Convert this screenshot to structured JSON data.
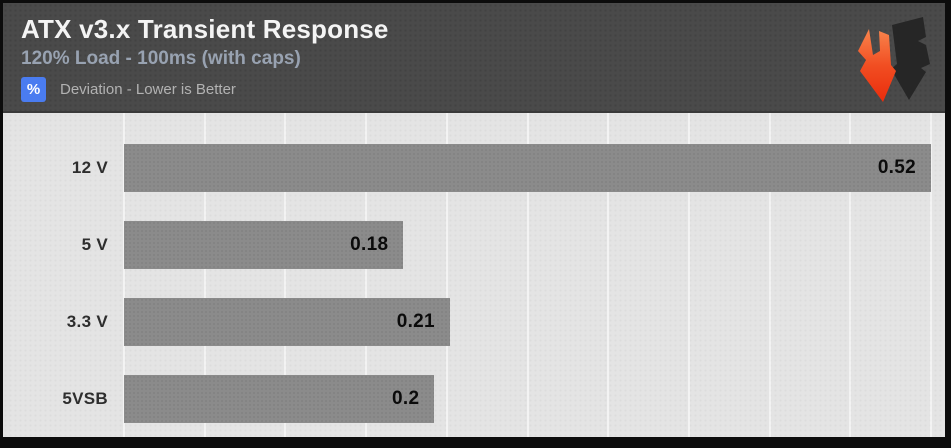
{
  "header": {
    "title": "ATX v3.x Transient Response",
    "subtitle": "120% Load - 100ms (with caps)"
  },
  "legend": {
    "symbol": "%",
    "label": "Deviation - Lower is Better"
  },
  "logo": {
    "name": "hardware-busters-hb-logo"
  },
  "colors": {
    "header_bg": "#4a4a4a",
    "plot_bg": "#e4e4e4",
    "bar": "#8b8b8b",
    "legend_badge_blue": "#4a7cf0",
    "logo_orange_top": "#f9854d",
    "logo_orange_bottom": "#ea2c0c",
    "logo_dark": "#262626",
    "frame": "#0c0c0c"
  },
  "chart_data": {
    "type": "bar",
    "orientation": "horizontal",
    "title": "ATX v3.x Transient Response",
    "subtitle": "120% Load - 100ms (with caps)",
    "unit": "%",
    "legend": "Deviation - Lower is Better",
    "categories": [
      "12 V",
      "5 V",
      "3.3 V",
      "5VSB"
    ],
    "values": [
      0.52,
      0.18,
      0.21,
      0.2
    ],
    "xlabel": "",
    "ylabel": "",
    "xlim": [
      0,
      0.52
    ],
    "grid": true,
    "gridline_count": 11,
    "legend_position": "top-left",
    "value_labels": "inside-end",
    "lower_is_better": true
  }
}
